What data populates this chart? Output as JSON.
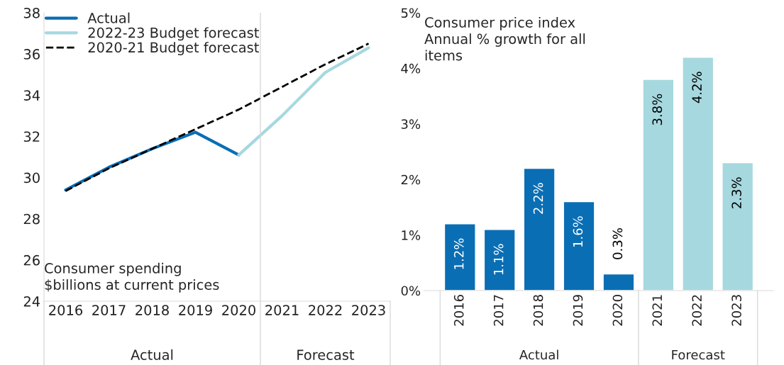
{
  "chart_data": [
    {
      "type": "line",
      "x": [
        2016,
        2017,
        2018,
        2019,
        2020,
        2021,
        2022,
        2023
      ],
      "xlim": [
        2015.5,
        2023.5
      ],
      "xticks": [
        2016,
        2017,
        2018,
        2019,
        2020,
        2021,
        2022,
        2023
      ],
      "ylim": [
        24,
        38
      ],
      "yticks": [
        24,
        26,
        28,
        30,
        32,
        34,
        36,
        38
      ],
      "grid": false,
      "legend": "top left",
      "series": [
        {
          "name": "Actual",
          "color": "#0a6eb4",
          "values": [
            29.4,
            30.5,
            31.4,
            32.2,
            31.1,
            null,
            null,
            null
          ]
        },
        {
          "name": "2022-23 Budget forecast",
          "color": "#a6d8df",
          "values": [
            null,
            null,
            null,
            null,
            31.1,
            33.0,
            35.1,
            36.3
          ]
        },
        {
          "name": "2020-21 Budget forecast",
          "color": "#000000",
          "line_style": "dashed",
          "values": [
            29.35,
            30.45,
            31.4,
            32.35,
            33.3,
            34.4,
            35.5,
            36.5
          ]
        }
      ],
      "ref_lines": [
        {
          "axis": "x",
          "value": 2020.5,
          "color": "#d9d9d9"
        }
      ],
      "annotations": [
        "Consumer spending\n$billions at current prices",
        "Actual",
        "Forecast"
      ]
    },
    {
      "type": "bar",
      "categories": [
        "2016",
        "2017",
        "2018",
        "2019",
        "2020",
        "2021",
        "2022",
        "2023"
      ],
      "values": [
        1.2,
        1.1,
        2.2,
        1.6,
        0.3,
        3.8,
        4.2,
        2.3
      ],
      "colors": [
        "#0a6eb4",
        "#0a6eb4",
        "#0a6eb4",
        "#0a6eb4",
        "#0a6eb4",
        "#a6d8df",
        "#a6d8df",
        "#a6d8df"
      ],
      "value_labels": [
        "1.2%",
        "1.1%",
        "2.2%",
        "1.6%",
        "0.3%",
        "3.8%",
        "4.2%",
        "2.3%"
      ],
      "ylim": [
        0,
        5
      ],
      "yticks": [
        {
          "value": 0,
          "label": "0%"
        },
        {
          "value": 1,
          "label": "1%"
        },
        {
          "value": 2,
          "label": "2%"
        },
        {
          "value": 3,
          "label": "3%"
        },
        {
          "value": 4,
          "label": "4%"
        },
        {
          "value": 5,
          "label": "5%"
        }
      ],
      "grid": false,
      "annotations": [
        "Consumer price index\nAnnual % growth for all\nitems",
        "Actual",
        "Forecast"
      ]
    }
  ]
}
